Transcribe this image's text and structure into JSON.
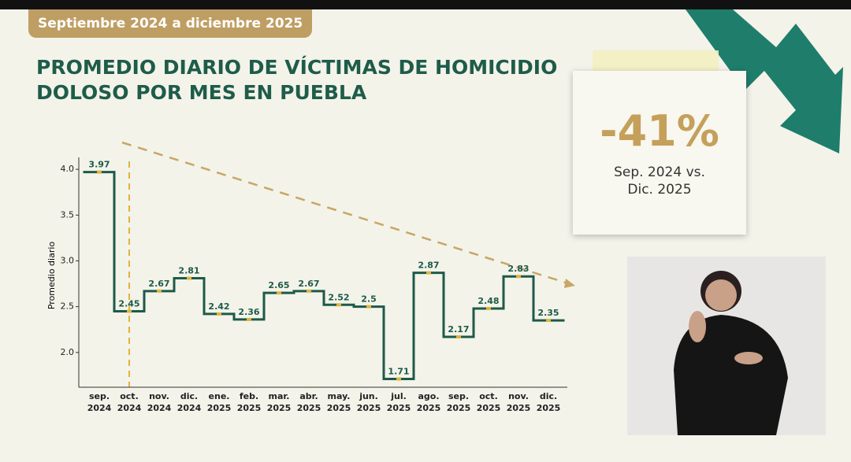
{
  "chart_data": {
    "type": "step",
    "subtitle": "Septiembre 2024 a diciembre 2025",
    "title": "PROMEDIO DIARIO DE VÍCTIMAS DE HOMICIDIO\nDOLOSO POR MES EN PUEBLA",
    "y_label": "Promedio diario",
    "categories": [
      "sep.\n2024",
      "oct.\n2024",
      "nov.\n2024",
      "dic.\n2024",
      "ene.\n2025",
      "feb.\n2025",
      "mar.\n2025",
      "abr.\n2025",
      "may.\n2025",
      "jun.\n2025",
      "jul.\n2025",
      "ago.\n2025",
      "sep.\n2025",
      "oct.\n2025",
      "nov.\n2025",
      "dic.\n2025"
    ],
    "values": [
      3.97,
      2.45,
      2.67,
      2.81,
      2.42,
      2.36,
      2.65,
      2.67,
      2.52,
      2.5,
      1.71,
      2.87,
      2.17,
      2.48,
      2.83,
      2.35
    ],
    "color": "#1d5a48",
    "marker_color": "#e0b43c",
    "ylim": [
      1.62,
      4.13
    ],
    "yticks": [
      {
        "value": 2,
        "label": "2.0"
      },
      2.5,
      {
        "value": 3,
        "label": "3.0"
      },
      3.5,
      {
        "value": 4,
        "label": "4.0"
      }
    ],
    "annotation": {
      "text": "-41%",
      "note": "Sep. 2024 vs.\nDic. 2025"
    }
  }
}
